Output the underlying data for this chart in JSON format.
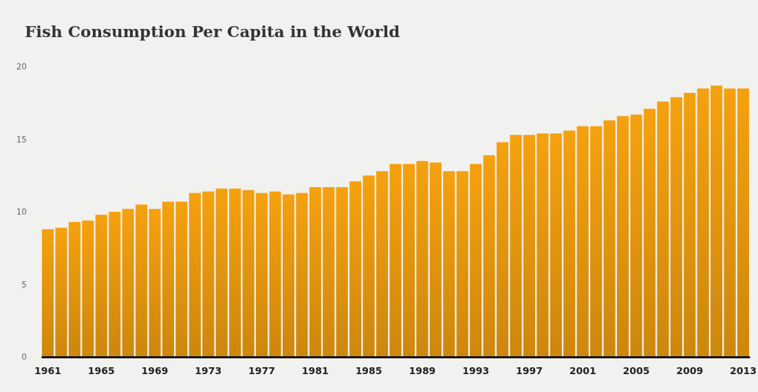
{
  "chart_data": {
    "type": "bar",
    "title": "Fish Consumption Per Capita in the World",
    "categories": [
      "1961",
      null,
      null,
      null,
      "1965",
      null,
      null,
      null,
      "1969",
      null,
      null,
      null,
      "1973",
      null,
      null,
      null,
      "1977",
      null,
      null,
      null,
      "1981",
      null,
      null,
      null,
      "1985",
      null,
      null,
      null,
      "1989",
      null,
      null,
      null,
      "1993",
      null,
      null,
      null,
      "1997",
      null,
      null,
      null,
      "2001",
      null,
      null,
      null,
      "2005",
      null,
      null,
      null,
      "2009",
      null,
      null,
      null,
      "2013"
    ],
    "values": [
      8.8,
      8.9,
      9.3,
      9.4,
      9.8,
      10.0,
      10.2,
      10.5,
      10.2,
      10.7,
      10.7,
      11.3,
      11.4,
      11.6,
      11.6,
      11.5,
      11.3,
      11.4,
      11.2,
      11.3,
      11.7,
      11.7,
      11.7,
      12.1,
      12.5,
      12.8,
      13.3,
      13.3,
      13.5,
      13.4,
      12.8,
      12.8,
      13.3,
      13.9,
      14.8,
      15.3,
      15.3,
      15.4,
      15.4,
      15.6,
      15.9,
      15.9,
      16.3,
      16.6,
      16.7,
      17.1,
      17.6,
      17.9,
      18.2,
      18.5,
      18.7,
      18.5,
      18.5
    ],
    "color": "#f5a10f",
    "ylim": [
      0,
      20
    ],
    "yticks": [
      0,
      5,
      10,
      15,
      20
    ],
    "grid": false
  }
}
